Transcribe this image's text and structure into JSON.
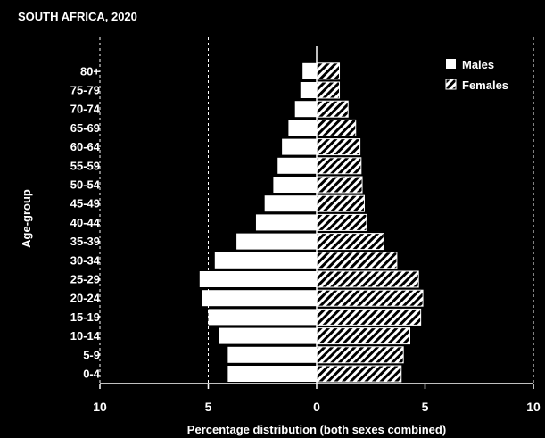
{
  "chart_data": {
    "type": "bar",
    "title": "SOUTH AFRICA, 2020",
    "xlabel": "Percentage distribution (both sexes combined)",
    "ylabel": "Age-group",
    "categories": [
      "0-4",
      "5-9",
      "10-14",
      "15-19",
      "20-24",
      "25-29",
      "30-34",
      "35-39",
      "40-44",
      "45-49",
      "50-54",
      "55-59",
      "60-64",
      "65-69",
      "70-74",
      "75-79",
      "80+"
    ],
    "series": [
      {
        "name": "Males",
        "values": [
          4.1,
          4.1,
          4.5,
          5.0,
          5.3,
          5.4,
          4.7,
          3.7,
          2.8,
          2.4,
          2.0,
          1.8,
          1.6,
          1.3,
          1.0,
          0.75,
          0.65
        ]
      },
      {
        "name": "Females",
        "values": [
          3.9,
          4.0,
          4.3,
          4.8,
          4.9,
          4.7,
          3.7,
          3.1,
          2.3,
          2.2,
          2.1,
          2.05,
          2.0,
          1.8,
          1.45,
          1.05,
          1.05
        ]
      }
    ],
    "xlim": [
      -10,
      10
    ],
    "xticks": [
      "10",
      "5",
      "0",
      "5",
      "10"
    ],
    "xtick_values": [
      -10,
      -5,
      0,
      5,
      10
    ],
    "grid": "dashed vertical lines at 5 and 10",
    "legend": "top-right",
    "colors": {
      "background": "#000000",
      "males": "#ffffff",
      "females_hatch": "#ffffff"
    }
  }
}
